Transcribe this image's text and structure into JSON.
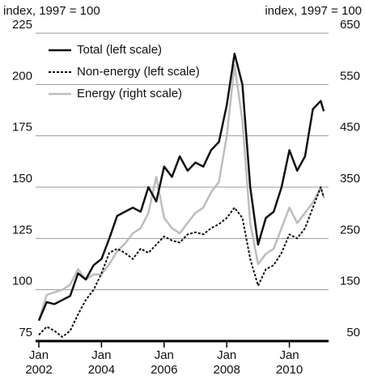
{
  "chart_data": {
    "type": "line",
    "y_label": "index, 1997 = 100",
    "y2_label": "index, 1997 = 100",
    "x": [
      2002.0,
      2002.25,
      2002.5,
      2002.75,
      2003.0,
      2003.25,
      2003.5,
      2003.75,
      2004.0,
      2004.25,
      2004.5,
      2004.75,
      2005.0,
      2005.25,
      2005.5,
      2005.75,
      2006.0,
      2006.25,
      2006.5,
      2006.75,
      2007.0,
      2007.25,
      2007.5,
      2007.75,
      2008.0,
      2008.25,
      2008.5,
      2008.75,
      2009.0,
      2009.25,
      2009.5,
      2009.75,
      2010.0,
      2010.25,
      2010.5,
      2010.75,
      2011.0,
      2011.1
    ],
    "series": [
      {
        "name": "Total (left scale)",
        "color": "#111111",
        "style": "solid",
        "axis": "y",
        "values": [
          85,
          94,
          93,
          95,
          97,
          108,
          105,
          112,
          115,
          125,
          136,
          138,
          140,
          138,
          150,
          143,
          160,
          155,
          165,
          158,
          162,
          160,
          168,
          172,
          190,
          215,
          200,
          150,
          122,
          135,
          138,
          150,
          168,
          158,
          165,
          188,
          192,
          187
        ]
      },
      {
        "name": "Non-energy (left scale)",
        "color": "#111111",
        "style": "dashed",
        "axis": "y",
        "values": [
          78,
          82,
          80,
          77,
          80,
          88,
          95,
          100,
          108,
          118,
          120,
          118,
          115,
          120,
          118,
          122,
          126,
          124,
          123,
          127,
          128,
          127,
          130,
          132,
          135,
          140,
          135,
          115,
          102,
          110,
          112,
          118,
          127,
          125,
          130,
          140,
          150,
          145
        ]
      },
      {
        "name": "Energy (right scale)",
        "color": "#bdbdbd",
        "style": "solid",
        "axis": "y2",
        "values": [
          90,
          140,
          145,
          150,
          160,
          190,
          170,
          180,
          180,
          200,
          225,
          240,
          260,
          270,
          300,
          370,
          290,
          270,
          260,
          280,
          300,
          310,
          340,
          360,
          450,
          588,
          480,
          280,
          200,
          220,
          230,
          270,
          310,
          280,
          300,
          320,
          350,
          330
        ]
      }
    ],
    "xlim": [
      2002.0,
      2011.2
    ],
    "xticks": [
      {
        "value": 2002,
        "label": [
          "Jan",
          "2002"
        ]
      },
      {
        "value": 2004,
        "label": [
          "Jan",
          "2004"
        ]
      },
      {
        "value": 2006,
        "label": [
          "Jan",
          "2006"
        ]
      },
      {
        "value": 2008,
        "label": [
          "Jan",
          "2008"
        ]
      },
      {
        "value": 2010,
        "label": [
          "Jan",
          "2010"
        ]
      }
    ],
    "ylim": [
      75,
      225
    ],
    "yticks": [
      75,
      100,
      125,
      150,
      175,
      200,
      225
    ],
    "y2lim": [
      50,
      650
    ],
    "y2ticks": [
      50,
      150,
      250,
      350,
      450,
      550,
      650
    ],
    "grid": true,
    "legend": "upper left"
  }
}
